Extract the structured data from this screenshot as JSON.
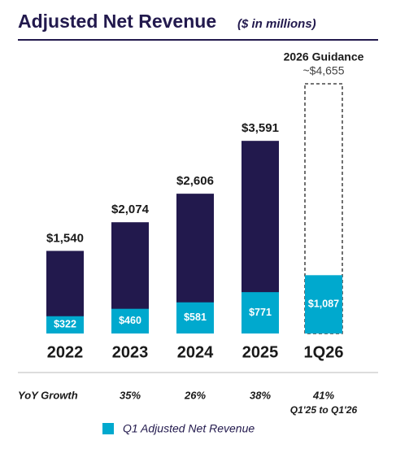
{
  "chart_data": {
    "type": "bar",
    "title": "Adjusted Net Revenue",
    "subtitle": "($ in millions)",
    "categories": [
      "2022",
      "2023",
      "2024",
      "2025",
      "1Q26"
    ],
    "series": [
      {
        "color": "#22194d",
        "values": [
          1540,
          2074,
          2606,
          3591,
          4655
        ],
        "value_labels": [
          "$1,540",
          "$2,074",
          "$2,606",
          "$3,591",
          "~$4,655"
        ],
        "projected": [
          false,
          false,
          false,
          false,
          true
        ]
      },
      {
        "name": "Q1 Adjusted Net Revenue",
        "color": "#00a9ce",
        "values": [
          322,
          460,
          581,
          771,
          1087
        ],
        "value_labels": [
          "$322",
          "$460",
          "$581",
          "$771",
          "$1,087"
        ]
      }
    ],
    "annotation": "2026 Guidance",
    "growth_label": "YoY Growth",
    "growth": [
      null,
      "35%",
      "26%",
      "38%",
      "41%"
    ],
    "growth_note": "Q1'25 to Q1'26"
  }
}
